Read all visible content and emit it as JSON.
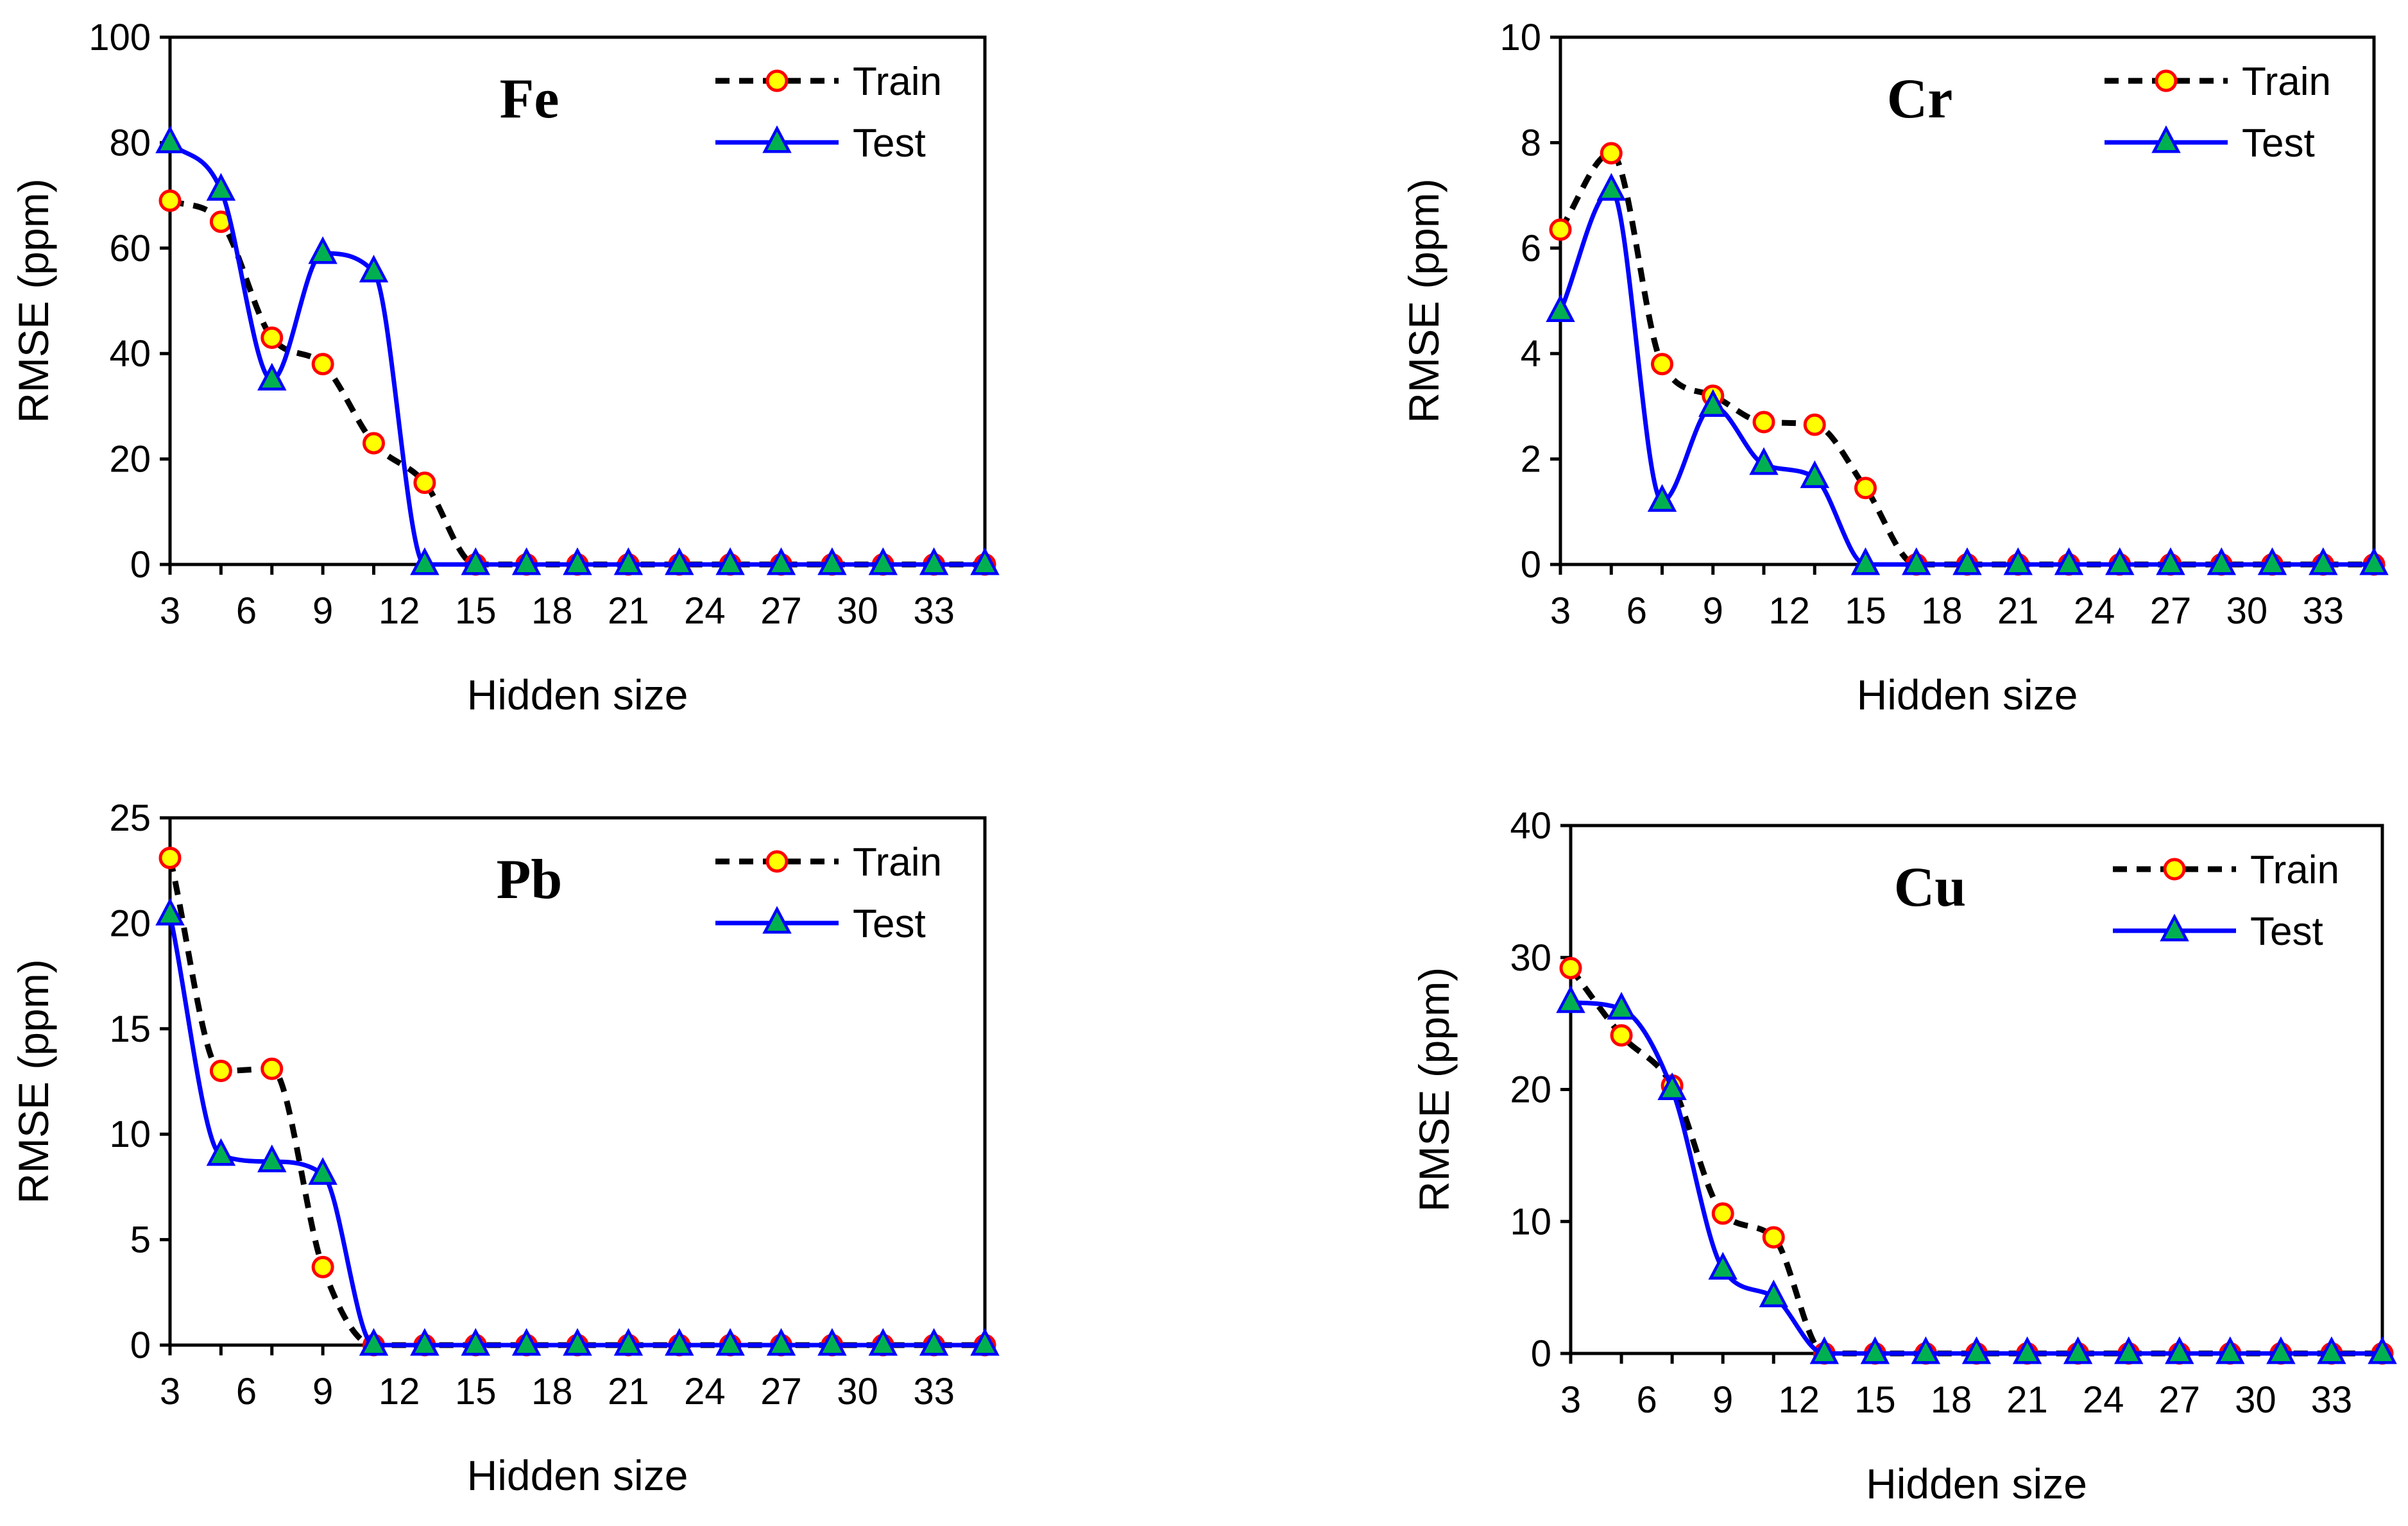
{
  "chart_data": [
    {
      "type": "line",
      "title": "Fe",
      "xlabel": "Hidden size",
      "ylabel": "RMSE (ppm)",
      "xlim": [
        3,
        35
      ],
      "ylim": [
        0,
        100
      ],
      "xticks": [
        3,
        6,
        9,
        12,
        15,
        18,
        21,
        24,
        27,
        30,
        33
      ],
      "yticks": [
        0,
        20,
        40,
        60,
        80,
        100
      ],
      "legend_position": "top-right",
      "x": [
        3,
        5,
        7,
        9,
        11,
        13,
        15,
        17,
        19,
        21,
        23,
        25,
        27,
        29,
        31,
        33,
        35
      ],
      "series": [
        {
          "name": "Train",
          "style": "dashed",
          "color": "#000000",
          "marker": "circle",
          "marker_fill": "#ffff00",
          "marker_edge": "#ff0000",
          "values": [
            69,
            65,
            43,
            38,
            23,
            15.5,
            0,
            0,
            0,
            0,
            0,
            0,
            0,
            0,
            0,
            0,
            0
          ]
        },
        {
          "name": "Test",
          "style": "solid",
          "color": "#0000ff",
          "marker": "triangle",
          "marker_fill": "#00b050",
          "marker_edge": "#0000ff",
          "values": [
            80,
            71,
            35,
            59,
            55.5,
            0,
            0,
            0,
            0,
            0,
            0,
            0,
            0,
            0,
            0,
            0,
            0
          ]
        }
      ]
    },
    {
      "type": "line",
      "title": "Cr",
      "xlabel": "Hidden size",
      "ylabel": "RMSE (ppm)",
      "xlim": [
        3,
        35
      ],
      "ylim": [
        0,
        10
      ],
      "xticks": [
        3,
        6,
        9,
        12,
        15,
        18,
        21,
        24,
        27,
        30,
        33
      ],
      "yticks": [
        0,
        2,
        4,
        6,
        8,
        10
      ],
      "legend_position": "top-right",
      "x": [
        3,
        5,
        7,
        9,
        11,
        13,
        15,
        17,
        19,
        21,
        23,
        25,
        27,
        29,
        31,
        33,
        35
      ],
      "series": [
        {
          "name": "Train",
          "style": "dashed",
          "color": "#000000",
          "marker": "circle",
          "marker_fill": "#ffff00",
          "marker_edge": "#ff0000",
          "values": [
            6.35,
            7.8,
            3.8,
            3.2,
            2.7,
            2.65,
            1.45,
            0,
            0,
            0,
            0,
            0,
            0,
            0,
            0,
            0,
            0
          ]
        },
        {
          "name": "Test",
          "style": "solid",
          "color": "#0000ff",
          "marker": "triangle",
          "marker_fill": "#00b050",
          "marker_edge": "#0000ff",
          "values": [
            4.8,
            7.1,
            1.2,
            3.0,
            1.9,
            1.65,
            0,
            0,
            0,
            0,
            0,
            0,
            0,
            0,
            0,
            0,
            0
          ]
        }
      ]
    },
    {
      "type": "line",
      "title": "Pb",
      "xlabel": "Hidden size",
      "ylabel": "RMSE (ppm)",
      "xlim": [
        3,
        35
      ],
      "ylim": [
        0,
        25
      ],
      "xticks": [
        3,
        6,
        9,
        12,
        15,
        18,
        21,
        24,
        27,
        30,
        33
      ],
      "yticks": [
        0,
        5,
        10,
        15,
        20,
        25
      ],
      "legend_position": "top-right",
      "x": [
        3,
        5,
        7,
        9,
        11,
        13,
        15,
        17,
        19,
        21,
        23,
        25,
        27,
        29,
        31,
        33,
        35
      ],
      "series": [
        {
          "name": "Train",
          "style": "dashed",
          "color": "#000000",
          "marker": "circle",
          "marker_fill": "#ffff00",
          "marker_edge": "#ff0000",
          "values": [
            23.1,
            13.0,
            13.1,
            3.7,
            0,
            0,
            0,
            0,
            0,
            0,
            0,
            0,
            0,
            0,
            0,
            0,
            0
          ]
        },
        {
          "name": "Test",
          "style": "solid",
          "color": "#0000ff",
          "marker": "triangle",
          "marker_fill": "#00b050",
          "marker_edge": "#0000ff",
          "values": [
            20.4,
            9.0,
            8.7,
            8.1,
            0,
            0,
            0,
            0,
            0,
            0,
            0,
            0,
            0,
            0,
            0,
            0,
            0
          ]
        }
      ]
    },
    {
      "type": "line",
      "title": "Cu",
      "xlabel": "Hidden size",
      "ylabel": "RMSE (ppm)",
      "xlim": [
        3,
        35
      ],
      "ylim": [
        0,
        40
      ],
      "xticks": [
        3,
        6,
        9,
        12,
        15,
        18,
        21,
        24,
        27,
        30,
        33
      ],
      "yticks": [
        0,
        10,
        20,
        30,
        40
      ],
      "legend_position": "top-right",
      "x": [
        3,
        5,
        7,
        9,
        11,
        13,
        15,
        17,
        19,
        21,
        23,
        25,
        27,
        29,
        31,
        33,
        35
      ],
      "series": [
        {
          "name": "Train",
          "style": "dashed",
          "color": "#000000",
          "marker": "circle",
          "marker_fill": "#ffff00",
          "marker_edge": "#ff0000",
          "values": [
            29.2,
            24.1,
            20.3,
            10.6,
            8.8,
            0,
            0,
            0,
            0,
            0,
            0,
            0,
            0,
            0,
            0,
            0,
            0
          ]
        },
        {
          "name": "Test",
          "style": "solid",
          "color": "#0000ff",
          "marker": "triangle",
          "marker_fill": "#00b050",
          "marker_edge": "#0000ff",
          "values": [
            26.6,
            26.1,
            20.0,
            6.4,
            4.3,
            0,
            0,
            0,
            0,
            0,
            0,
            0,
            0,
            0,
            0,
            0,
            0
          ]
        }
      ]
    }
  ]
}
